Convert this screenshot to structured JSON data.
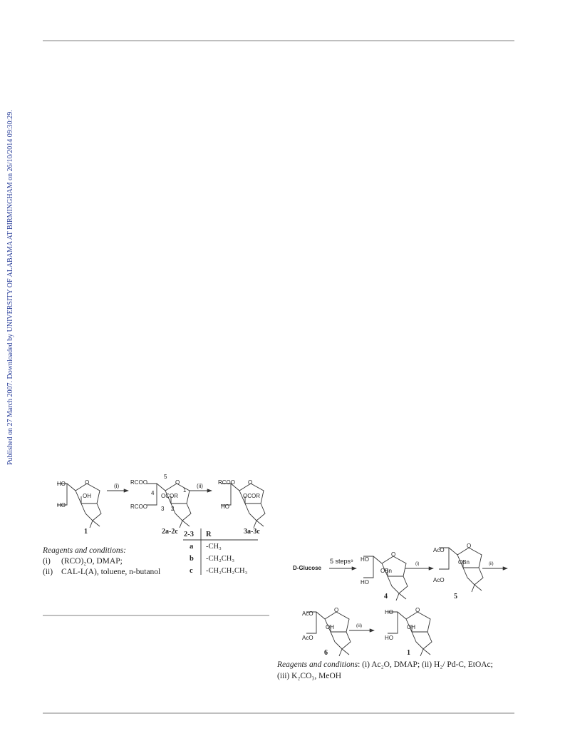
{
  "side_note": "Published on 27 March 2007. Downloaded by UNIVERSITY OF ALABAMA AT BIRMINGHAM on 26/10/2014 09:30:29.",
  "scheme1": {
    "compounds": [
      {
        "labels": [
          "HO",
          "O",
          "OH",
          "HO"
        ],
        "number": "1"
      },
      {
        "labels": [
          "RCOO",
          "5",
          "O",
          "4",
          "OCOR",
          "1",
          "RCOO",
          "3",
          "2"
        ],
        "number": "2a-2c"
      },
      {
        "labels": [
          "RCOO",
          "O",
          "OCOR",
          "HO"
        ],
        "number": "3a-3c"
      }
    ],
    "arrows": [
      "(i)",
      "(ii)"
    ],
    "table": {
      "header": [
        "2-3",
        "R"
      ],
      "rows": [
        [
          "a",
          "-CH₃"
        ],
        [
          "b",
          "-CH₂CH₃"
        ],
        [
          "c",
          "-CH₂CH₂CH₃"
        ]
      ]
    },
    "reagents": {
      "heading": "Reagents and conditions:",
      "lines": [
        [
          "(i)",
          "(RCO)₂O, DMAP;"
        ],
        [
          "(ii)",
          "CAL-L(A), toluene, n-butanol"
        ]
      ]
    }
  },
  "scheme2": {
    "start": "D-Glucose",
    "steps": "5 steps⁹",
    "compounds": [
      {
        "labels": [
          "HO",
          "O",
          "OBn",
          "HO"
        ],
        "number": "4"
      },
      {
        "labels": [
          "AcO",
          "O",
          "OBn",
          "AcO"
        ],
        "number": "5"
      },
      {
        "labels": [
          "AcO",
          "O",
          "OH",
          "AcO"
        ],
        "number": "6"
      },
      {
        "labels": [
          "HO",
          "O",
          "OH",
          "HO"
        ],
        "number": "1"
      }
    ],
    "arrows": [
      "(i)",
      "(ii)",
      "(iii)"
    ],
    "reagents": {
      "heading": "Reagents and conditions",
      "line1": ": (i) Ac₂O, DMAP; (ii) H₂/ Pd-C, EtOAc;",
      "line2": "(iii) K₂CO₃, MeOH"
    }
  }
}
